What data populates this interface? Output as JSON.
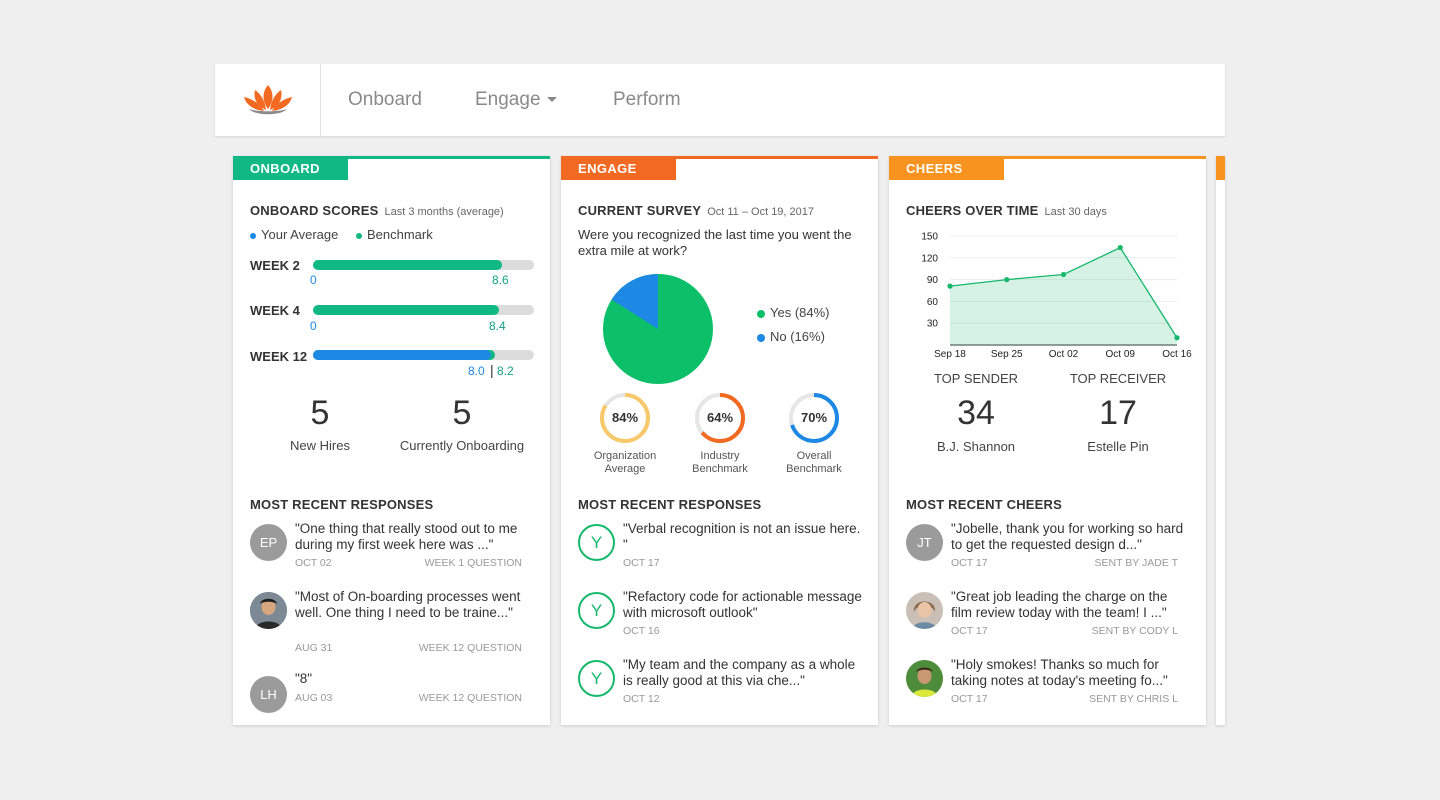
{
  "nav": {
    "items": [
      {
        "label": "Onboard"
      },
      {
        "label": "Engage"
      },
      {
        "label": "Perform"
      }
    ]
  },
  "colors": {
    "onboard": "#10b981",
    "engage": "#f26a22",
    "cheers": "#f7931e",
    "green": "#0cc06a",
    "blue": "#1e88e5",
    "teal": "#16a085"
  },
  "onboard": {
    "tab": "ONBOARD",
    "scores_title": "ONBOARD SCORES",
    "scores_sub": "Last 3 months (average)",
    "legend_avg": "Your Average",
    "legend_bench": "Benchmark",
    "weeks": [
      {
        "label": "WEEK 2",
        "start": "0",
        "value": "8.6",
        "fill": 0.86
      },
      {
        "label": "WEEK 4",
        "start": "0",
        "value": "8.4",
        "fill": 0.84
      },
      {
        "label": "WEEK 12",
        "avg": "8.0",
        "bench": "8.2",
        "fill": 0.82
      }
    ],
    "stats": [
      {
        "num": "5",
        "label": "New Hires"
      },
      {
        "num": "5",
        "label": "Currently Onboarding"
      }
    ],
    "responses_title": "MOST RECENT RESPONSES",
    "responses": [
      {
        "initials": "EP",
        "text": "\"One thing that really stood out to me during my first week here was ...\"",
        "date": "OCT 02",
        "meta": "WEEK 1 QUESTION"
      },
      {
        "initials": "",
        "text_line1": "\"Most of On-boarding processes went",
        "text_line2": "well. One thing I need to be traine...\"",
        "date": "AUG 31",
        "meta": "WEEK 12 QUESTION"
      },
      {
        "initials": "LH",
        "text": "\"8\"",
        "date": "AUG 03",
        "meta": "WEEK 12 QUESTION"
      }
    ]
  },
  "engage": {
    "tab": "ENGAGE",
    "survey_title": "CURRENT SURVEY",
    "survey_sub": "Oct 11 – Oct 19, 2017",
    "question": "Were you recognized the last time you went the extra mile at work?",
    "pie": [
      {
        "label": "Yes (84%)",
        "value": 84
      },
      {
        "label": "No (16%)",
        "value": 16
      }
    ],
    "donuts": [
      {
        "pct": "84%",
        "value": 84,
        "label_line1": "Organization",
        "label_line2": "Average",
        "color": "#f7c96b"
      },
      {
        "pct": "64%",
        "value": 64,
        "label_line1": "Industry",
        "label_line2": "Benchmark",
        "color": "#f26a22"
      },
      {
        "pct": "70%",
        "value": 70,
        "label_line1": "Overall",
        "label_line2": "Benchmark",
        "color": "#1e88e5"
      }
    ],
    "responses_title": "MOST RECENT RESPONSES",
    "responses": [
      {
        "icon": "Y",
        "text": "\"Verbal recognition is not an issue here. \"",
        "date": "OCT 17"
      },
      {
        "icon": "Y",
        "text": "\"Refactory code for actionable message with microsoft outlook\"",
        "date": "OCT 16"
      },
      {
        "icon": "Y",
        "text": "\"My team and the company as a whole is really good at this via che...\"",
        "date": "OCT 12"
      }
    ]
  },
  "cheers": {
    "tab": "CHEERS",
    "chart_title": "CHEERS OVER TIME",
    "chart_sub": "Last 30 days",
    "top_sender_label": "TOP SENDER",
    "top_sender_num": "34",
    "top_sender_name": "B.J. Shannon",
    "top_receiver_label": "TOP RECEIVER",
    "top_receiver_num": "17",
    "top_receiver_name": "Estelle Pin",
    "recent_title": "MOST RECENT CHEERS",
    "recent": [
      {
        "initials": "JT",
        "text": "\"Jobelle, thank you for working so hard to get the requested design d...\"",
        "date": "OCT 17",
        "meta": "SENT BY JADE T"
      },
      {
        "initials": "",
        "text": "\"Great job leading the charge on the film review today with the team! I ...\"",
        "date": "OCT 17",
        "meta": "SENT BY CODY L"
      },
      {
        "initials": "",
        "text": "\"Holy smokes! Thanks so much for taking notes at today's meeting fo...\"",
        "date": "OCT 17",
        "meta": "SENT BY CHRIS L"
      }
    ]
  },
  "chart_data": {
    "type": "area",
    "x": [
      "Sep 18",
      "Sep 25",
      "Oct 02",
      "Oct 09",
      "Oct 16"
    ],
    "y": [
      81,
      90,
      97,
      134,
      10
    ],
    "yticks": [
      150,
      120,
      90,
      60,
      30
    ],
    "ylim": [
      0,
      150
    ],
    "grid": true,
    "color": "#16b86c"
  }
}
